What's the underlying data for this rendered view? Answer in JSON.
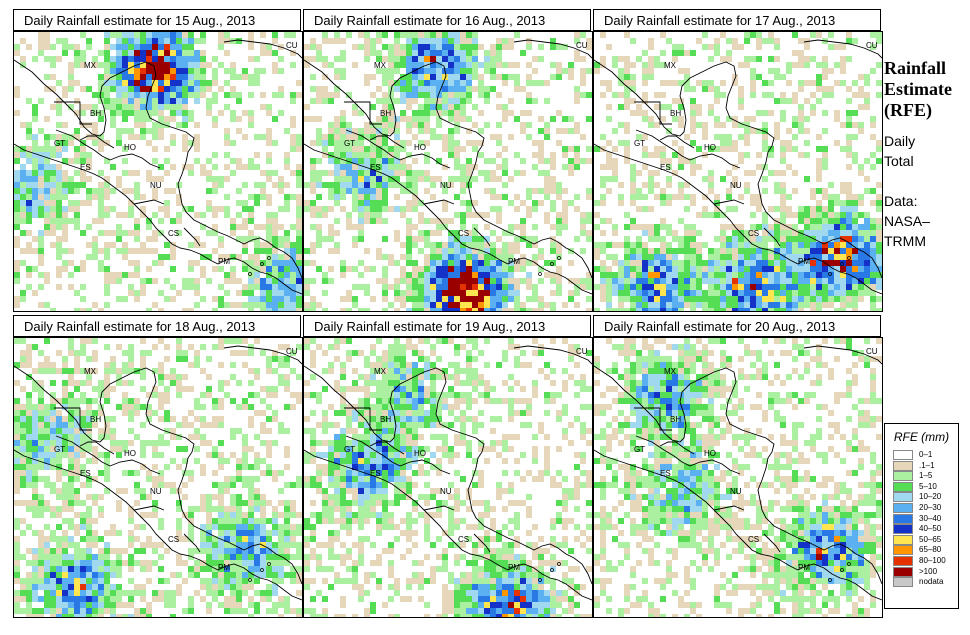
{
  "panels": [
    {
      "title": "Daily Rainfall estimate for  15 Aug., 2013",
      "seed": 15
    },
    {
      "title": "Daily Rainfall estimate for  16 Aug., 2013",
      "seed": 16
    },
    {
      "title": "Daily Rainfall estimate for  17 Aug., 2013",
      "seed": 17
    },
    {
      "title": "Daily Rainfall estimate for  18 Aug., 2013",
      "seed": 18
    },
    {
      "title": "Daily Rainfall estimate for  19 Aug., 2013",
      "seed": 19
    },
    {
      "title": "Daily Rainfall estimate for  20 Aug., 2013",
      "seed": 20
    }
  ],
  "country_labels": [
    "MX",
    "BH",
    "GT",
    "HO",
    "ES",
    "NU",
    "CS",
    "PM",
    "CU"
  ],
  "sidebar": {
    "title_lines": [
      "Rainfall",
      "Estimate",
      "(RFE)"
    ],
    "period_lines": [
      "Daily",
      "Total"
    ],
    "source_lines": [
      "Data:",
      "NASA–",
      "TRMM"
    ]
  },
  "legend": {
    "title": "RFE (mm)",
    "bins": [
      {
        "label": "0–1",
        "color": "#ffffff"
      },
      {
        "label": ".1–1",
        "color": "#e6d7bb"
      },
      {
        "label": "1–5",
        "color": "#aaf0a0"
      },
      {
        "label": "5–10",
        "color": "#55dd55"
      },
      {
        "label": "10–20",
        "color": "#a0d8f0"
      },
      {
        "label": "20–30",
        "color": "#5ab0f0"
      },
      {
        "label": "30–40",
        "color": "#2878e6"
      },
      {
        "label": "40–50",
        "color": "#1432c8"
      },
      {
        "label": "50–65",
        "color": "#ffe650"
      },
      {
        "label": "65–80",
        "color": "#ff9600"
      },
      {
        "label": "80–100",
        "color": "#e63200"
      },
      {
        "label": ">100",
        "color": "#9b0000"
      },
      {
        "label": "nodata",
        "color": "#c8c8c8"
      }
    ]
  }
}
